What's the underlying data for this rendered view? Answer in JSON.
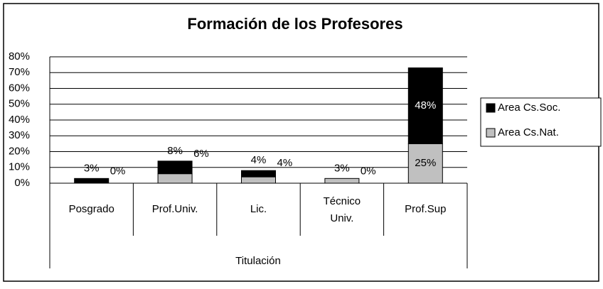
{
  "chart_data": {
    "type": "stacked_bar",
    "title": "Formación de los Profesores",
    "x_label": "Titulación",
    "categories": [
      "Posgrado",
      "Prof.Univ.",
      "Lic.",
      "Técnico Univ.",
      "Prof.Sup"
    ],
    "series": [
      {
        "name": "Area Cs.Nat.",
        "color": "#c0c0c0",
        "values": [
          0,
          6,
          4,
          3,
          25
        ],
        "value_labels": [
          "0%",
          "6%",
          "4%",
          "3%",
          "25%"
        ]
      },
      {
        "name": "Area Cs.Soc.",
        "color": "#000000",
        "values": [
          3,
          8,
          4,
          0,
          48
        ],
        "value_labels": [
          "3%",
          "8%",
          "4%",
          "0%",
          "48%"
        ]
      }
    ],
    "ylim": [
      0,
      80
    ],
    "yticks": [
      {
        "value": 0,
        "label": "0%"
      },
      {
        "value": 10,
        "label": "10%"
      },
      {
        "value": 20,
        "label": "20%"
      },
      {
        "value": 30,
        "label": "30%"
      },
      {
        "value": 40,
        "label": "40%"
      },
      {
        "value": 50,
        "label": "50%"
      },
      {
        "value": 60,
        "label": "60%"
      },
      {
        "value": 70,
        "label": "70%"
      },
      {
        "value": 80,
        "label": "80%"
      }
    ],
    "grid": true,
    "legend": "right"
  }
}
